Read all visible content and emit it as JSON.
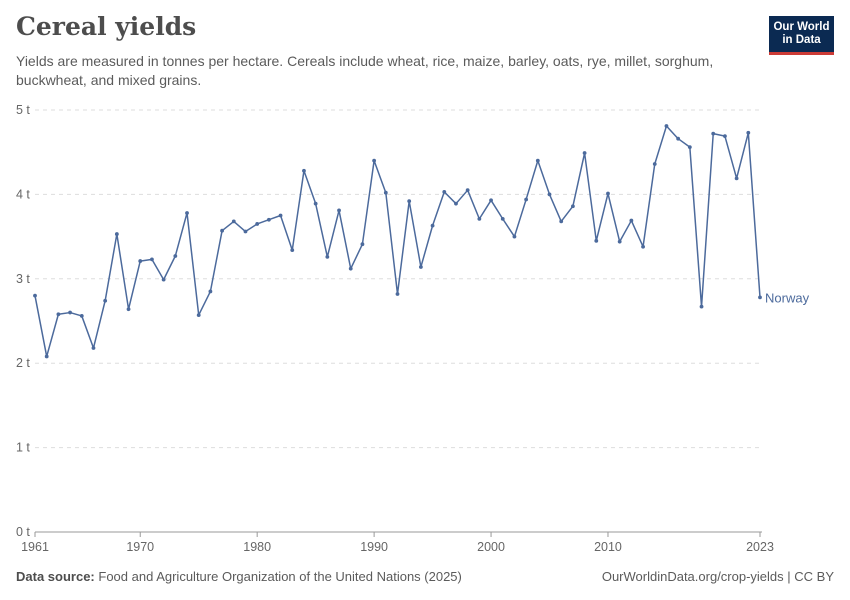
{
  "header": {
    "title": "Cereal yields",
    "subtitle": "Yields are measured in tonnes per hectare. Cereals include wheat, rice, maize, barley, oats, rye, millet, sorghum, buckwheat, and mixed grains.",
    "logo_line1": "Our World",
    "logo_line2": "in Data"
  },
  "footer": {
    "source_label": "Data source:",
    "source_text": "Food and Agriculture Organization of the United Nations (2025)",
    "url": "OurWorldinData.org/crop-yields | CC BY"
  },
  "colors": {
    "series": "#4c6a9c",
    "grid": "#dddddd",
    "text": "#666666",
    "logo_bg": "#0b2a52",
    "logo_accent": "#cc3b36"
  },
  "chart_data": {
    "type": "line",
    "title": "Cereal yields",
    "xlabel": "",
    "ylabel": "",
    "xlim": [
      1961,
      2023
    ],
    "ylim": [
      0,
      5
    ],
    "x_ticks": [
      1961,
      1970,
      1980,
      1990,
      2000,
      2010,
      2023
    ],
    "y_ticks": [
      0,
      1,
      2,
      3,
      4,
      5
    ],
    "y_tick_labels": [
      "0 t",
      "1 t",
      "2 t",
      "3 t",
      "4 t",
      "5 t"
    ],
    "grid": true,
    "series": [
      {
        "name": "Norway",
        "x": [
          1961,
          1962,
          1963,
          1964,
          1965,
          1966,
          1967,
          1968,
          1969,
          1970,
          1971,
          1972,
          1973,
          1974,
          1975,
          1976,
          1977,
          1978,
          1979,
          1980,
          1981,
          1982,
          1983,
          1984,
          1985,
          1986,
          1987,
          1988,
          1989,
          1990,
          1991,
          1992,
          1993,
          1994,
          1995,
          1996,
          1997,
          1998,
          1999,
          2000,
          2001,
          2002,
          2003,
          2004,
          2005,
          2006,
          2007,
          2008,
          2009,
          2010,
          2011,
          2012,
          2013,
          2014,
          2015,
          2016,
          2017,
          2018,
          2019,
          2020,
          2021,
          2022,
          2023
        ],
        "y": [
          2.8,
          2.08,
          2.58,
          2.6,
          2.56,
          2.18,
          2.74,
          3.53,
          2.64,
          3.21,
          3.23,
          2.99,
          3.27,
          3.78,
          2.57,
          2.85,
          3.57,
          3.68,
          3.56,
          3.65,
          3.7,
          3.75,
          3.34,
          4.28,
          3.89,
          3.26,
          3.81,
          3.12,
          3.41,
          4.4,
          4.02,
          2.82,
          3.92,
          3.14,
          3.63,
          4.03,
          3.89,
          4.05,
          3.71,
          3.93,
          3.71,
          3.5,
          3.94,
          4.4,
          4.0,
          3.68,
          3.86,
          4.49,
          3.45,
          4.01,
          3.44,
          3.69,
          3.38,
          4.36,
          4.81,
          4.66,
          4.56,
          2.67,
          4.72,
          4.69,
          4.19,
          4.73,
          2.78
        ]
      }
    ]
  }
}
